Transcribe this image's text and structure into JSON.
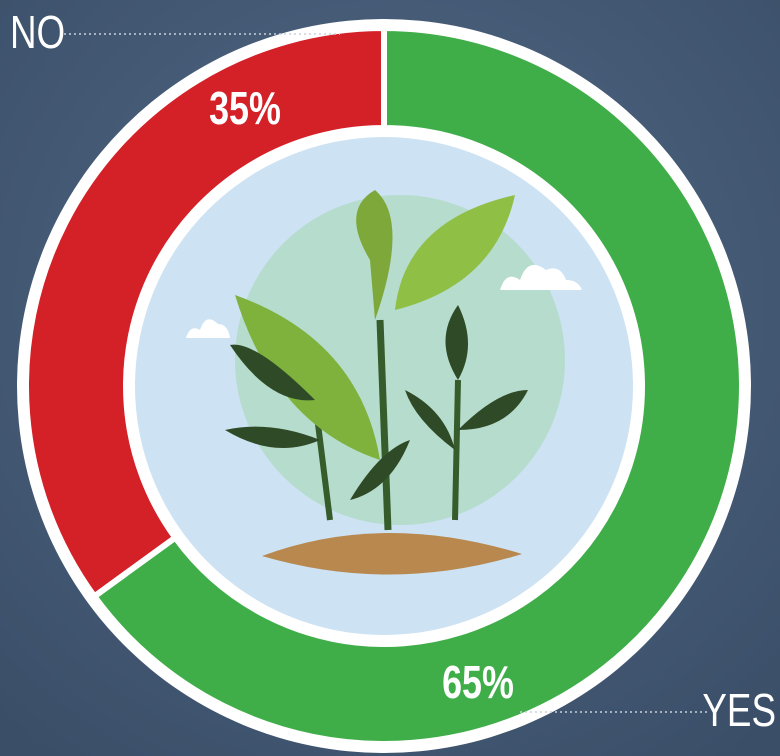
{
  "chart_data": {
    "type": "donut",
    "categories": [
      "NO",
      "YES"
    ],
    "values": [
      35,
      65
    ],
    "value_labels": [
      "35%",
      "65%"
    ],
    "colors": [
      "#d42027",
      "#3fae49"
    ]
  }
}
